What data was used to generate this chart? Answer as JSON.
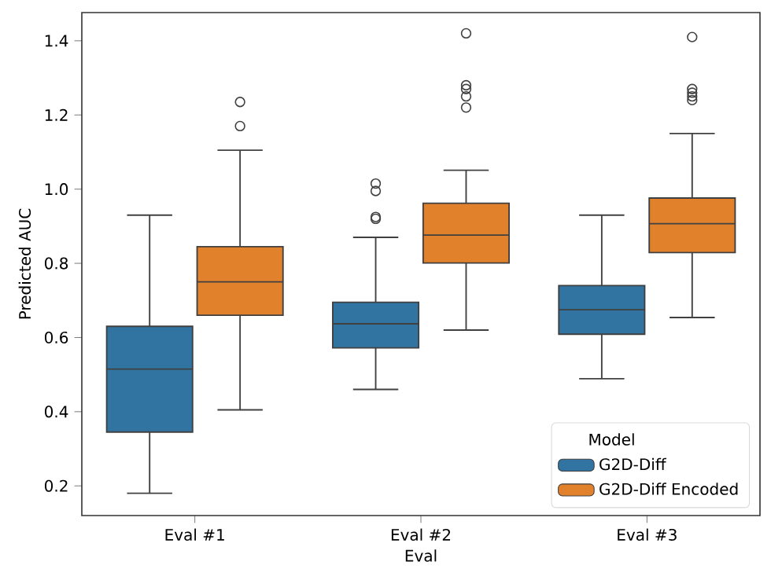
{
  "chart_data": {
    "type": "box",
    "xlabel": "Eval",
    "ylabel": "Predicted AUC",
    "categories": [
      "Eval #1",
      "Eval #2",
      "Eval #3"
    ],
    "ylim": [
      0.12,
      1.476
    ],
    "yticks": [
      0.2,
      0.4,
      0.6,
      0.8,
      {
        "value": 1.0,
        "label": "1.0"
      },
      1.2,
      1.4
    ],
    "legend": "bottom right",
    "legend_title": "Model",
    "series": [
      {
        "name": "G2D-Diff",
        "color": "#3274a1",
        "boxes": [
          {
            "low": 0.18,
            "q1": 0.345,
            "median": 0.515,
            "q3": 0.63,
            "high": 0.93
          },
          {
            "low": 0.46,
            "q1": 0.572,
            "median": 0.637,
            "q3": 0.695,
            "high": 0.87,
            "outliers": [
              1.015,
              0.995,
              0.925,
              0.92
            ]
          },
          {
            "low": 0.489,
            "q1": 0.609,
            "median": 0.675,
            "q3": 0.74,
            "high": 0.93
          }
        ]
      },
      {
        "name": "G2D-Diff Encoded",
        "color": "#e1812c",
        "boxes": [
          {
            "low": 0.405,
            "q1": 0.66,
            "median": 0.75,
            "q3": 0.845,
            "high": 1.105,
            "outliers": [
              1.235,
              1.17
            ]
          },
          {
            "low": 0.62,
            "q1": 0.801,
            "median": 0.876,
            "q3": 0.962,
            "high": 1.051,
            "outliers": [
              1.42,
              1.28,
              1.27,
              1.25,
              1.22
            ]
          },
          {
            "low": 0.654,
            "q1": 0.829,
            "median": 0.907,
            "q3": 0.976,
            "high": 1.15,
            "outliers": [
              1.41,
              1.27,
              1.26,
              1.25,
              1.24
            ]
          }
        ]
      }
    ]
  }
}
